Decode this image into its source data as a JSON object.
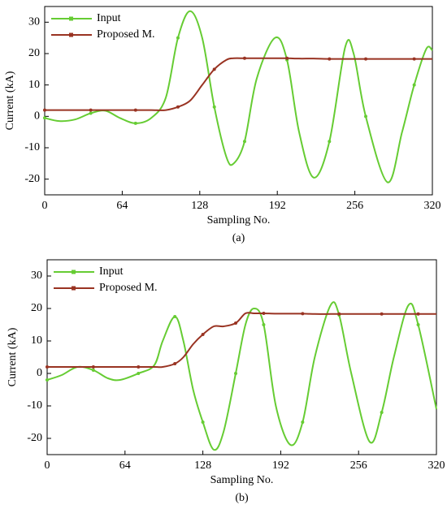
{
  "chart_data": [
    {
      "type": "line",
      "caption": "(a)",
      "xlabel": "Sampling No.",
      "ylabel": "Current (kA)",
      "x": [
        0,
        12,
        25,
        38,
        50,
        62,
        75,
        88,
        100,
        110,
        120,
        130,
        140,
        150,
        156,
        165,
        175,
        190,
        200,
        210,
        222,
        235,
        248,
        255,
        265,
        283,
        295,
        305,
        315,
        320
      ],
      "series": [
        {
          "name": "Input",
          "color": "#66cc33",
          "values": [
            -0.5,
            -1.5,
            -1,
            1,
            1.8,
            -0.5,
            -2.2,
            -0.5,
            6,
            25,
            33.5,
            25,
            3,
            -13,
            -15,
            -8,
            12,
            25,
            18,
            -5,
            -19.5,
            -8,
            22,
            20,
            0,
            -21,
            -5,
            10,
            21.5,
            21
          ]
        },
        {
          "name": "Proposed M.",
          "color": "#993322",
          "values": [
            2,
            2,
            2,
            2,
            2,
            2,
            2,
            2,
            2,
            3,
            5,
            10,
            15,
            18,
            18.5,
            18.5,
            18.5,
            18.5,
            18.5,
            18.4,
            18.4,
            18.3,
            18.3,
            18.3,
            18.3,
            18.3,
            18.3,
            18.3,
            18.3,
            18.3
          ]
        }
      ],
      "xlim": [
        0,
        320
      ],
      "xticks": [
        0,
        64,
        128,
        192,
        256,
        320
      ],
      "ylim": [
        -25,
        35
      ],
      "yticks": [
        -20,
        -10,
        0,
        10,
        20,
        30
      ],
      "legend": "upper left"
    },
    {
      "type": "line",
      "caption": "(b)",
      "xlabel": "Sampling No.",
      "ylabel": "Current (kA)",
      "x": [
        0,
        12,
        25,
        38,
        50,
        60,
        75,
        88,
        95,
        105,
        112,
        120,
        128,
        137,
        145,
        155,
        163,
        170,
        178,
        188,
        200,
        210,
        220,
        233,
        240,
        250,
        265,
        275,
        285,
        297,
        305,
        320
      ],
      "series": [
        {
          "name": "Input",
          "color": "#66cc33",
          "values": [
            -2,
            -0.5,
            2,
            1,
            -1.5,
            -2,
            0,
            2.5,
            10,
            17.5,
            10,
            -5,
            -15,
            -23.5,
            -18,
            0,
            15,
            20,
            15,
            -10,
            -22,
            -15,
            5,
            21,
            18,
            0,
            -21,
            -12,
            5,
            21,
            15,
            -11
          ]
        },
        {
          "name": "Proposed M.",
          "color": "#993322",
          "values": [
            2,
            2,
            2,
            2,
            2,
            2,
            2,
            2,
            2,
            3,
            5,
            9,
            12,
            14.5,
            14.5,
            15.5,
            18.5,
            18.5,
            18.5,
            18.4,
            18.4,
            18.4,
            18.3,
            18.3,
            18.3,
            18.3,
            18.3,
            18.3,
            18.3,
            18.3,
            18.3,
            18.3
          ]
        }
      ],
      "xlim": [
        0,
        320
      ],
      "xticks": [
        0,
        64,
        128,
        192,
        256,
        320
      ],
      "ylim": [
        -25,
        35
      ],
      "yticks": [
        -20,
        -10,
        0,
        10,
        20,
        30
      ],
      "legend": "upper left"
    }
  ]
}
